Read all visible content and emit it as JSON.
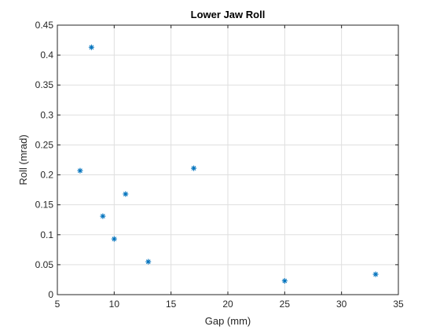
{
  "chart_data": {
    "type": "scatter",
    "title": "Lower Jaw Roll",
    "xlabel": "Gap (mm)",
    "ylabel": "Roll (mrad)",
    "xlim": [
      5,
      35
    ],
    "ylim": [
      0,
      0.45
    ],
    "xticks": [
      5,
      10,
      15,
      20,
      25,
      30,
      35
    ],
    "yticks": [
      0,
      0.05,
      0.1,
      0.15,
      0.2,
      0.25,
      0.3,
      0.35,
      0.4,
      0.45
    ],
    "xtick_labels": [
      "5",
      "10",
      "15",
      "20",
      "25",
      "30",
      "35"
    ],
    "ytick_labels": [
      "0",
      "0.05",
      "0.1",
      "0.15",
      "0.2",
      "0.25",
      "0.3",
      "0.35",
      "0.4",
      "0.45"
    ],
    "grid": true,
    "legend": "none",
    "marker": "asterisk",
    "color": "#0072BD",
    "series": [
      {
        "x": [
          7,
          8,
          9,
          10,
          11,
          13,
          17,
          25,
          33
        ],
        "y": [
          0.207,
          0.413,
          0.131,
          0.093,
          0.168,
          0.055,
          0.211,
          0.023,
          0.034
        ]
      }
    ]
  }
}
